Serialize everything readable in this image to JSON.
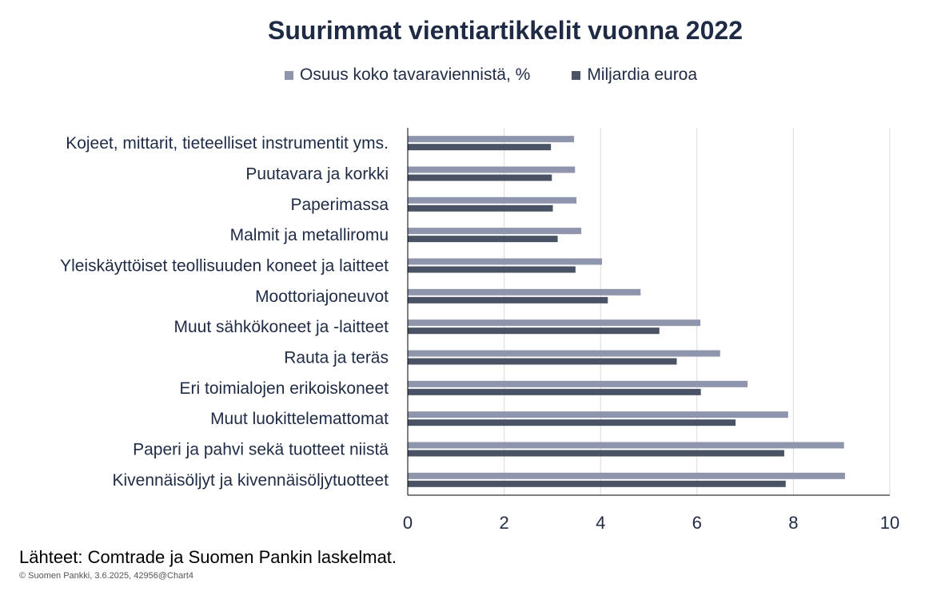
{
  "chart_data": {
    "type": "bar",
    "orientation": "horizontal",
    "title": "Suurimmat vientiartikkelit vuonna 2022",
    "categories": [
      "Kojeet, mittarit, tieteelliset instrumentit yms.",
      "Puutavara ja korkki",
      "Paperimassa",
      "Malmit ja metalliromu",
      "Yleiskäyttöiset teollisuuden koneet ja laitteet",
      "Moottoriajoneuvot",
      "Muut sähkökoneet ja -laitteet",
      "Rauta ja teräs",
      "Eri toimialojen erikoiskoneet",
      "Muut luokittelemattomat",
      "Paperi ja pahvi sekä tuotteet niistä",
      "Kivennäisöljyt ja kivennäisöljytuotteet"
    ],
    "series": [
      {
        "name": "Osuus koko tavaraviennistä, %",
        "color": "#8e95ad",
        "values": [
          3.45,
          3.47,
          3.5,
          3.6,
          4.03,
          4.83,
          6.07,
          6.48,
          7.05,
          7.89,
          9.05,
          9.07
        ]
      },
      {
        "name": "Miljardia euroa",
        "color": "#4a5366",
        "values": [
          2.97,
          2.99,
          3.01,
          3.11,
          3.48,
          4.15,
          5.22,
          5.58,
          6.08,
          6.8,
          7.81,
          7.84
        ]
      }
    ],
    "xlim": [
      0,
      10
    ],
    "xticks": [
      "0",
      "2",
      "4",
      "6",
      "8",
      "10"
    ],
    "grid": true,
    "legend_position": "top"
  },
  "footer": {
    "source": "Lähteet: Comtrade ja Suomen Pankin laskelmat.",
    "credit": "© Suomen Pankki, 3.6.2025, 42956@Chart4"
  }
}
